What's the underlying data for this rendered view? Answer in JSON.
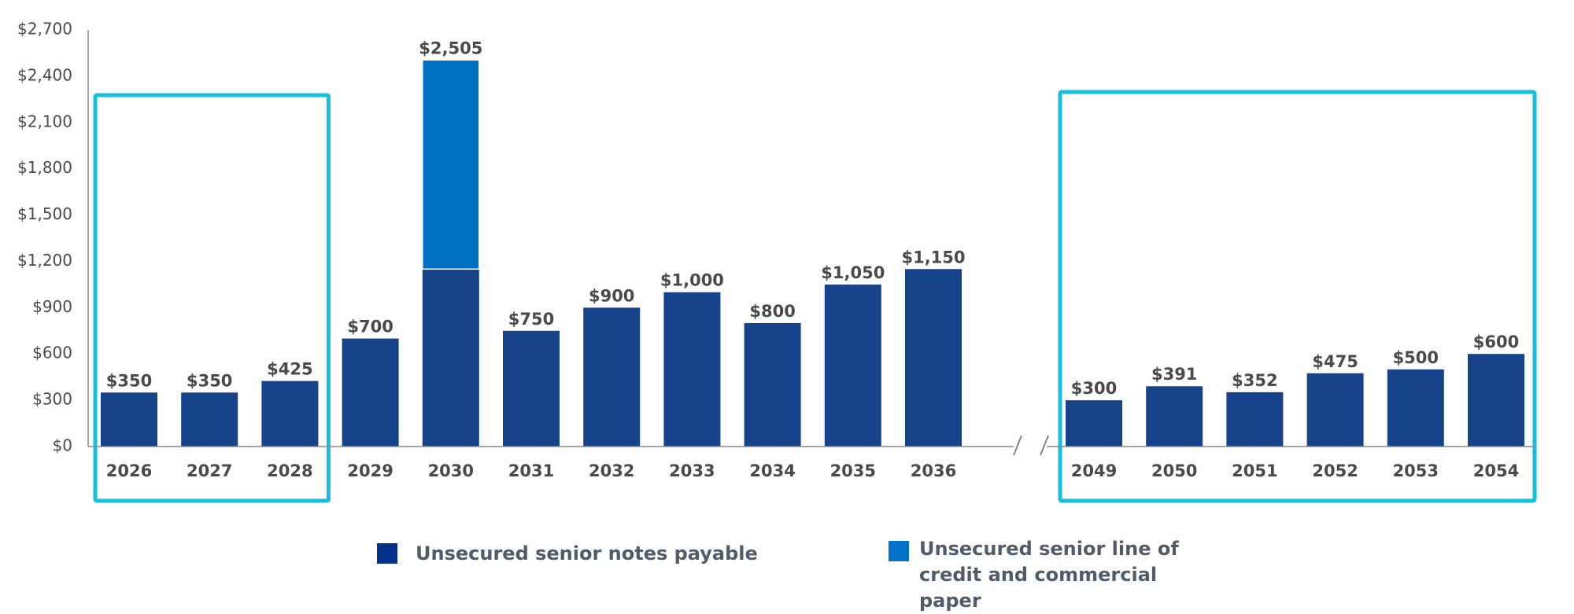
{
  "chart_data": {
    "type": "bar",
    "stacked": true,
    "title": "",
    "xlabel": "",
    "ylabel": "",
    "ylim": [
      0,
      2700
    ],
    "yticks": [
      0,
      300,
      600,
      900,
      1200,
      1500,
      1800,
      2100,
      2400,
      2700
    ],
    "ytick_labels": [
      "$0",
      "$300",
      "$600",
      "$900",
      "$1,200",
      "$1,500",
      "$1,800",
      "$2,100",
      "$2,400",
      "$2,700"
    ],
    "grid": false,
    "axis_break_between": [
      "2036",
      "2049"
    ],
    "categories": [
      "2026",
      "2027",
      "2028",
      "2029",
      "2030",
      "2031",
      "2032",
      "2033",
      "2034",
      "2035",
      "2036",
      "2049",
      "2050",
      "2051",
      "2052",
      "2053",
      "2054"
    ],
    "series": [
      {
        "name": "Unsecured senior notes payable",
        "color": "#17438a",
        "values": [
          350,
          350,
          425,
          700,
          1150,
          750,
          900,
          1000,
          800,
          1050,
          1150,
          300,
          391,
          352,
          475,
          500,
          600
        ]
      },
      {
        "name": "Unsecured senior line of credit and commercial paper",
        "color": "#0070c0",
        "values": [
          0,
          0,
          0,
          0,
          1355,
          0,
          0,
          0,
          0,
          0,
          0,
          0,
          0,
          0,
          0,
          0,
          0
        ]
      }
    ],
    "data_labels": [
      "$350",
      "$350",
      "$425",
      "$700",
      "$2,505",
      "$750",
      "$900",
      "$1,000",
      "$800",
      "$1,050",
      "$1,150",
      "$300",
      "$391",
      "$352",
      "$475",
      "$500",
      "$600"
    ],
    "highlight_boxes": [
      {
        "categories": [
          "2026",
          "2027",
          "2028"
        ],
        "color": "#16bfdc"
      },
      {
        "categories": [
          "2049",
          "2050",
          "2051",
          "2052",
          "2053",
          "2054"
        ],
        "color": "#16bfdc"
      }
    ],
    "legend": {
      "placement": "bottom",
      "entries": [
        {
          "label": "Unsecured senior notes payable",
          "color": "#003087"
        },
        {
          "label": "Unsecured senior line of credit and commercial paper",
          "color": "#0070c8"
        }
      ]
    }
  }
}
